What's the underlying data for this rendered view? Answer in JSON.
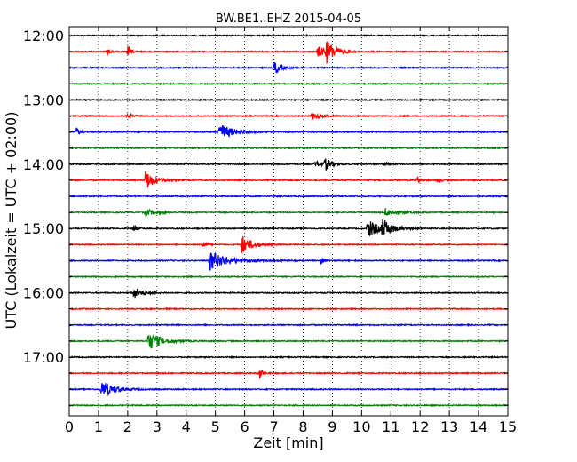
{
  "chart_data": {
    "type": "line",
    "subtype": "seismogram-dayplot",
    "title": "BW.BE1..EHZ 2015-04-05",
    "xlabel": "Zeit  [min]",
    "ylabel": "UTC (Lokalzeit = UTC + 02:00)",
    "xlim": [
      0,
      15
    ],
    "x_ticks": [
      0,
      1,
      2,
      3,
      4,
      5,
      6,
      7,
      8,
      9,
      10,
      11,
      12,
      13,
      14,
      15
    ],
    "x_tick_labels": [
      "0",
      "1",
      "2",
      "3",
      "4",
      "5",
      "6",
      "7",
      "8",
      "9",
      "10",
      "11",
      "12",
      "13",
      "14",
      "15"
    ],
    "y_tick_labels": [
      "12:00",
      "13:00",
      "14:00",
      "15:00",
      "16:00",
      "17:00"
    ],
    "y_tick_trace_index": [
      0,
      4,
      8,
      12,
      16,
      20
    ],
    "trace_interval_min": 15,
    "grid": "vertical dotted",
    "colors": [
      "#000000",
      "#ff0000",
      "#0000ff",
      "#008000"
    ],
    "series": [
      {
        "start": "12:00",
        "color": "#000000",
        "events": []
      },
      {
        "start": "12:15",
        "color": "#ff0000",
        "events": [
          {
            "t": 1.3,
            "amp": 0.4,
            "dur": 0.1
          },
          {
            "t": 2.0,
            "amp": 0.6,
            "dur": 0.1
          },
          {
            "t": 8.5,
            "amp": 0.6,
            "dur": 0.3
          },
          {
            "t": 8.8,
            "amp": 1.0,
            "dur": 0.3
          }
        ]
      },
      {
        "start": "12:30",
        "color": "#0000ff",
        "events": [
          {
            "t": 7.0,
            "amp": 0.8,
            "dur": 0.2
          }
        ]
      },
      {
        "start": "12:45",
        "color": "#008000",
        "events": []
      },
      {
        "start": "13:00",
        "color": "#000000",
        "events": []
      },
      {
        "start": "13:15",
        "color": "#ff0000",
        "events": [
          {
            "t": 2.0,
            "amp": 0.4,
            "dur": 0.1
          },
          {
            "t": 8.3,
            "amp": 0.4,
            "dur": 0.3
          },
          {
            "t": 15.0,
            "amp": 0.3,
            "dur": 0.1
          }
        ]
      },
      {
        "start": "13:30",
        "color": "#0000ff",
        "events": [
          {
            "t": 0.25,
            "amp": 0.5,
            "dur": 0.1
          },
          {
            "t": 5.1,
            "amp": 1.0,
            "dur": 0.4
          }
        ]
      },
      {
        "start": "13:45",
        "color": "#008000",
        "events": []
      },
      {
        "start": "14:00",
        "color": "#000000",
        "events": [
          {
            "t": 8.4,
            "amp": 0.3,
            "dur": 0.3
          },
          {
            "t": 8.75,
            "amp": 0.6,
            "dur": 0.2
          },
          {
            "t": 10.8,
            "amp": 0.2,
            "dur": 0.1
          }
        ]
      },
      {
        "start": "14:15",
        "color": "#ff0000",
        "events": [
          {
            "t": 2.6,
            "amp": 1.0,
            "dur": 0.3
          },
          {
            "t": 11.9,
            "amp": 0.4,
            "dur": 0.1
          },
          {
            "t": 12.6,
            "amp": 0.3,
            "dur": 0.1
          }
        ]
      },
      {
        "start": "14:30",
        "color": "#0000ff",
        "events": []
      },
      {
        "start": "14:45",
        "color": "#008000",
        "events": [
          {
            "t": 2.6,
            "amp": 0.3,
            "dur": 0.4
          },
          {
            "t": 10.8,
            "amp": 0.4,
            "dur": 0.4
          }
        ]
      },
      {
        "start": "15:00",
        "color": "#000000",
        "events": [
          {
            "t": 2.2,
            "amp": 0.4,
            "dur": 0.1
          },
          {
            "t": 10.2,
            "amp": 0.9,
            "dur": 0.4
          },
          {
            "t": 10.7,
            "amp": 0.8,
            "dur": 0.3
          }
        ]
      },
      {
        "start": "15:15",
        "color": "#ff0000",
        "events": [
          {
            "t": 4.55,
            "amp": 0.5,
            "dur": 0.1
          },
          {
            "t": 5.9,
            "amp": 1.0,
            "dur": 0.3
          }
        ]
      },
      {
        "start": "15:30",
        "color": "#0000ff",
        "events": [
          {
            "t": 4.8,
            "amp": 1.0,
            "dur": 0.6
          },
          {
            "t": 8.6,
            "amp": 0.4,
            "dur": 0.1
          }
        ]
      },
      {
        "start": "15:45",
        "color": "#008000",
        "events": []
      },
      {
        "start": "16:00",
        "color": "#000000",
        "events": [
          {
            "t": 2.2,
            "amp": 0.6,
            "dur": 0.3
          }
        ]
      },
      {
        "start": "16:15",
        "color": "#ff0000",
        "events": []
      },
      {
        "start": "16:30",
        "color": "#0000ff",
        "events": []
      },
      {
        "start": "16:45",
        "color": "#008000",
        "events": [
          {
            "t": 2.7,
            "amp": 1.0,
            "dur": 0.4
          }
        ]
      },
      {
        "start": "17:00",
        "color": "#000000",
        "events": []
      },
      {
        "start": "17:15",
        "color": "#ff0000",
        "events": [
          {
            "t": 6.5,
            "amp": 0.6,
            "dur": 0.1
          }
        ]
      },
      {
        "start": "17:30",
        "color": "#0000ff",
        "events": [
          {
            "t": 1.1,
            "amp": 0.9,
            "dur": 0.4
          }
        ]
      },
      {
        "start": "17:45",
        "color": "#008000",
        "events": []
      }
    ]
  }
}
